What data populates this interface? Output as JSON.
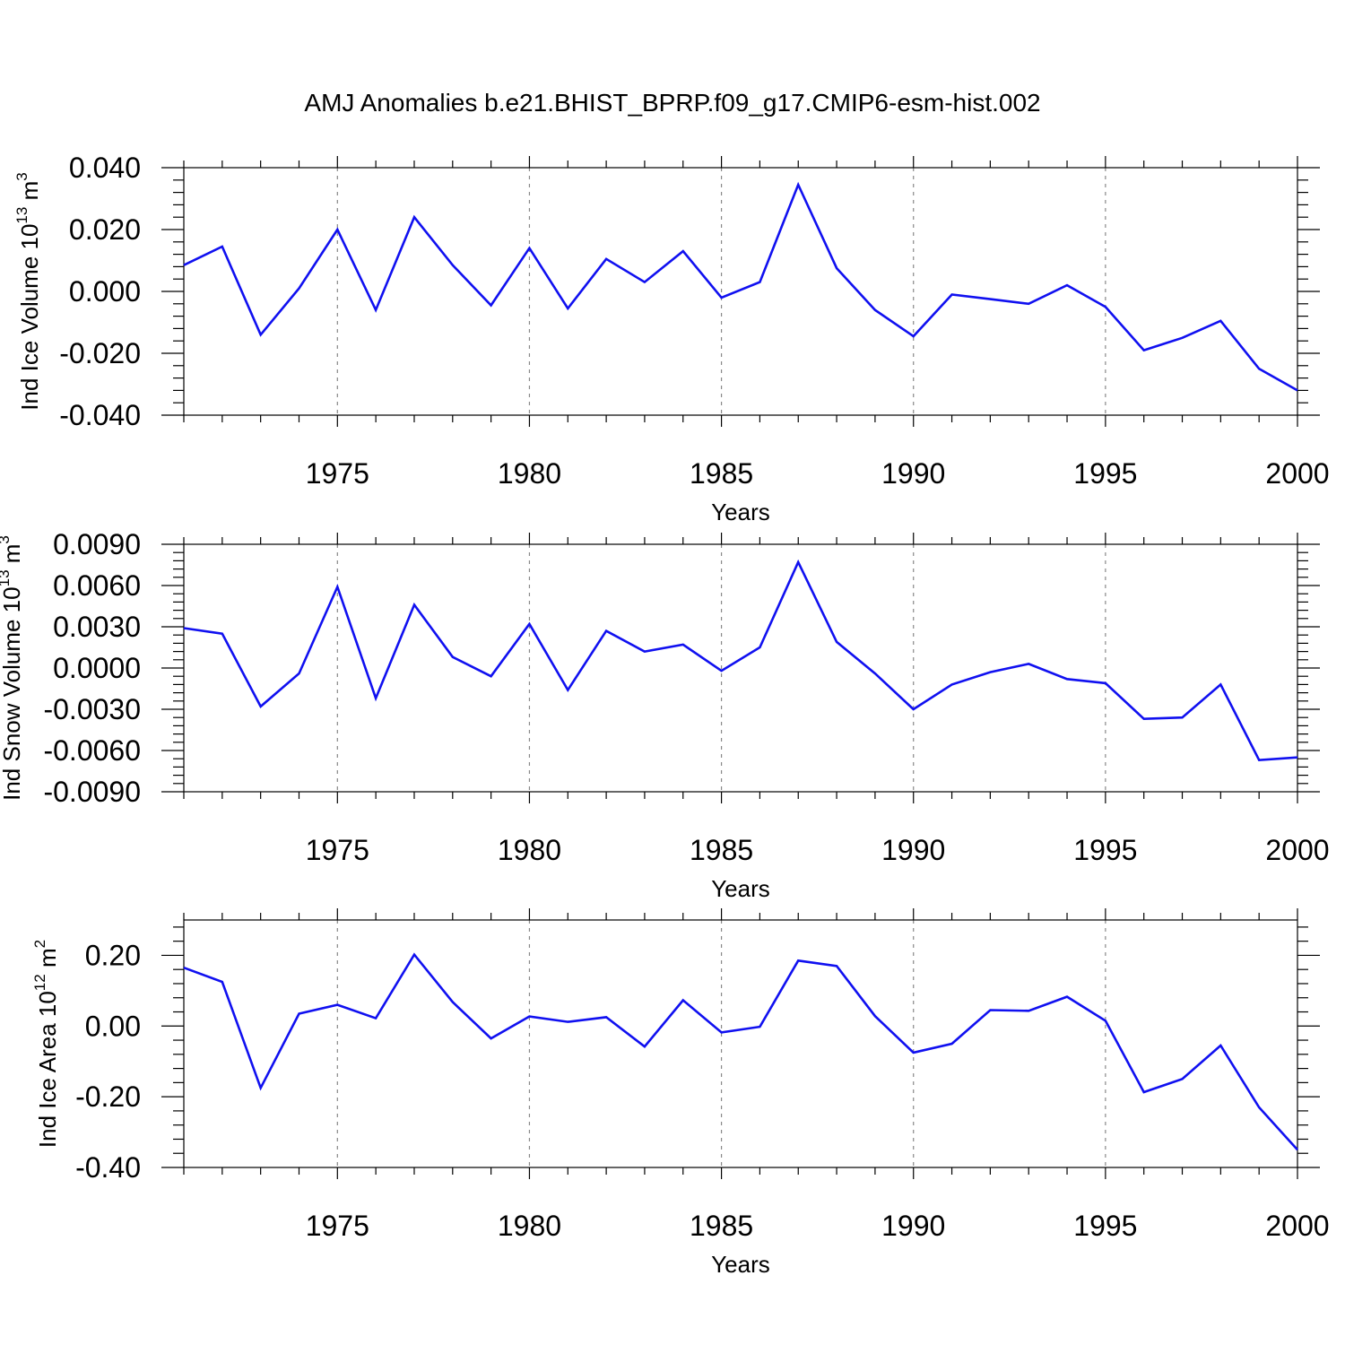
{
  "title": "AMJ Anomalies b.e21.BHIST_BPRP.f09_g17.CMIP6-esm-hist.002",
  "colors": {
    "series": "#1010f0",
    "frame": "#000000",
    "grid": "#888888"
  },
  "chart_data": [
    {
      "type": "line",
      "title": "AMJ Anomalies b.e21.BHIST_BPRP.f09_g17.CMIP6-esm-hist.002",
      "xlabel": "Years",
      "ylabel_main": "Ind Ice Volume 10",
      "ylabel_exp": "13",
      "ylabel_unit": " m",
      "ylabel_unit_exp": "3",
      "xlim": [
        1971,
        2000
      ],
      "ylim": [
        -0.04,
        0.04
      ],
      "yticks": [
        -0.04,
        -0.02,
        0.0,
        0.02,
        0.04
      ],
      "ytick_labels": [
        "-0.040",
        "-0.020",
        "0.000",
        "0.020",
        "0.040"
      ],
      "xticks": [
        1975,
        1980,
        1985,
        1990,
        1995,
        2000
      ],
      "xtick_labels": [
        "1975",
        "1980",
        "1985",
        "1990",
        "1995",
        "2000"
      ],
      "grid": "vertical-dashed",
      "x": [
        1971,
        1972,
        1973,
        1974,
        1975,
        1976,
        1977,
        1978,
        1979,
        1980,
        1981,
        1982,
        1983,
        1984,
        1985,
        1986,
        1987,
        1988,
        1989,
        1990,
        1991,
        1992,
        1993,
        1994,
        1995,
        1996,
        1997,
        1998,
        1999,
        2000
      ],
      "values": [
        0.0085,
        0.0145,
        -0.014,
        0.001,
        0.02,
        -0.006,
        0.024,
        0.0085,
        -0.0045,
        0.014,
        -0.0055,
        0.0105,
        0.003,
        0.013,
        -0.002,
        0.003,
        0.0345,
        0.0075,
        -0.006,
        -0.0145,
        -0.001,
        -0.0025,
        -0.004,
        0.002,
        -0.005,
        -0.019,
        -0.015,
        -0.0095,
        -0.025,
        -0.032
      ]
    },
    {
      "type": "line",
      "xlabel": "Years",
      "ylabel_main": "Ind Snow Volume 10",
      "ylabel_exp": "13",
      "ylabel_unit": " m",
      "ylabel_unit_exp": "3",
      "xlim": [
        1971,
        2000
      ],
      "ylim": [
        -0.009,
        0.009
      ],
      "yticks": [
        -0.009,
        -0.006,
        -0.003,
        0.0,
        0.003,
        0.006,
        0.009
      ],
      "ytick_labels": [
        "-0.0090",
        "-0.0060",
        "-0.0030",
        "0.0000",
        "0.0030",
        "0.0060",
        "0.0090"
      ],
      "xticks": [
        1975,
        1980,
        1985,
        1990,
        1995,
        2000
      ],
      "xtick_labels": [
        "1975",
        "1980",
        "1985",
        "1990",
        "1995",
        "2000"
      ],
      "grid": "vertical-dashed",
      "x": [
        1971,
        1972,
        1973,
        1974,
        1975,
        1976,
        1977,
        1978,
        1979,
        1980,
        1981,
        1982,
        1983,
        1984,
        1985,
        1986,
        1987,
        1988,
        1989,
        1990,
        1991,
        1992,
        1993,
        1994,
        1995,
        1996,
        1997,
        1998,
        1999,
        2000
      ],
      "values": [
        0.0029,
        0.0025,
        -0.0028,
        -0.0004,
        0.0059,
        -0.0022,
        0.0046,
        0.0008,
        -0.0006,
        0.0032,
        -0.0016,
        0.0027,
        0.0012,
        0.0017,
        -0.0002,
        0.0015,
        0.0077,
        0.0019,
        -0.0004,
        -0.003,
        -0.0012,
        -0.0003,
        0.0003,
        -0.0008,
        -0.0011,
        -0.0037,
        -0.0036,
        -0.0012,
        -0.0067,
        -0.0065
      ]
    },
    {
      "type": "line",
      "xlabel": "Years",
      "ylabel_main": "Ind Ice Area 10",
      "ylabel_exp": "12",
      "ylabel_unit": " m",
      "ylabel_unit_exp": "2",
      "xlim": [
        1971,
        2000
      ],
      "ylim": [
        -0.4,
        0.3
      ],
      "yticks": [
        -0.4,
        -0.2,
        0.0,
        0.2
      ],
      "ytick_labels": [
        "-0.40",
        "-0.20",
        "0.00",
        "0.20"
      ],
      "xticks": [
        1975,
        1980,
        1985,
        1990,
        1995,
        2000
      ],
      "xtick_labels": [
        "1975",
        "1980",
        "1985",
        "1990",
        "1995",
        "2000"
      ],
      "grid": "vertical-dashed",
      "x": [
        1971,
        1972,
        1973,
        1974,
        1975,
        1976,
        1977,
        1978,
        1979,
        1980,
        1981,
        1982,
        1983,
        1984,
        1985,
        1986,
        1987,
        1988,
        1989,
        1990,
        1991,
        1992,
        1993,
        1994,
        1995,
        1996,
        1997,
        1998,
        1999,
        2000
      ],
      "values": [
        0.165,
        0.125,
        -0.175,
        0.035,
        0.06,
        0.022,
        0.202,
        0.068,
        -0.035,
        0.027,
        0.012,
        0.025,
        -0.058,
        0.073,
        -0.018,
        -0.002,
        0.185,
        0.17,
        0.028,
        -0.075,
        -0.05,
        0.045,
        0.043,
        0.083,
        0.015,
        -0.187,
        -0.15,
        -0.055,
        -0.23,
        -0.35
      ]
    }
  ]
}
